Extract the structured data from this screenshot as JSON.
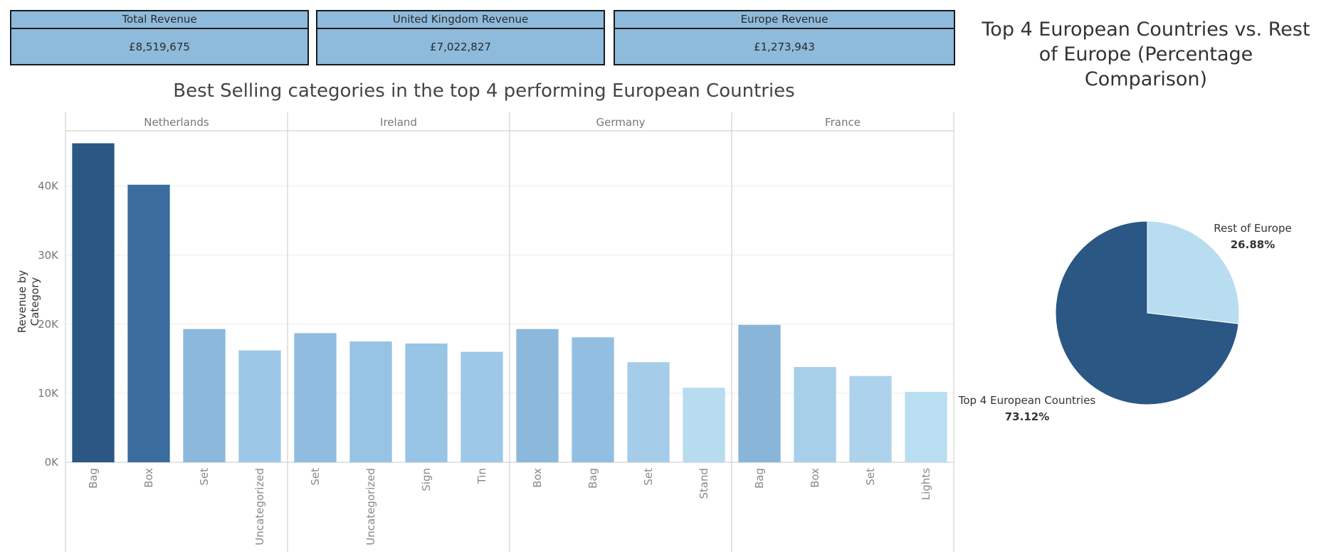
{
  "kpis": {
    "total": {
      "label": "Total Revenue",
      "value": "£8,519,675"
    },
    "uk": {
      "label": "United Kingdom Revenue",
      "value": "£7,022,827"
    },
    "europe": {
      "label": "Europe Revenue",
      "value": "£1,273,943"
    }
  },
  "chart_data": [
    {
      "type": "bar",
      "title": "Best Selling categories in the top 4 performing European Countries",
      "ylabel": "Revenue by Category",
      "ylim": [
        0,
        48000
      ],
      "yticks": [
        0,
        10000,
        20000,
        30000,
        40000
      ],
      "ytick_labels": [
        "0K",
        "10K",
        "20K",
        "30K",
        "40K"
      ],
      "grid": true,
      "panels": [
        {
          "name": "Netherlands",
          "categories": [
            "Bag",
            "Box",
            "Set",
            "Uncategorized"
          ],
          "values": [
            46200,
            40200,
            19300,
            16200
          ],
          "colors": [
            "#2a5783",
            "#3a6d9e",
            "#8cb8db",
            "#9dc7e6"
          ]
        },
        {
          "name": "Ireland",
          "categories": [
            "Set",
            "Uncategorized",
            "Sign",
            "Tin"
          ],
          "values": [
            18700,
            17500,
            17200,
            16000
          ],
          "colors": [
            "#8fbcdf",
            "#97c3e4",
            "#98c4e5",
            "#9ec8e7"
          ]
        },
        {
          "name": "Germany",
          "categories": [
            "Box",
            "Bag",
            "Set",
            "Stand"
          ],
          "values": [
            19300,
            18100,
            14500,
            10800
          ],
          "colors": [
            "#8cb8db",
            "#92bfe1",
            "#a5cde9",
            "#b7dcf0"
          ]
        },
        {
          "name": "France",
          "categories": [
            "Bag",
            "Box",
            "Set",
            "Lights"
          ],
          "values": [
            19900,
            13800,
            12500,
            10200
          ],
          "colors": [
            "#89b5d9",
            "#a8cfea",
            "#acd2ec",
            "#b9ddf1"
          ]
        }
      ]
    },
    {
      "type": "pie",
      "title": "Top 4 European Countries vs. Rest of Europe (Percentage Comparison)",
      "labels": [
        "Rest of Europe",
        "Top 4 European Countries"
      ],
      "values": [
        26.88,
        73.12
      ],
      "value_labels": [
        "26.88%",
        "73.12%"
      ],
      "colors": [
        "#b8ddf0",
        "#2a5783"
      ]
    }
  ]
}
